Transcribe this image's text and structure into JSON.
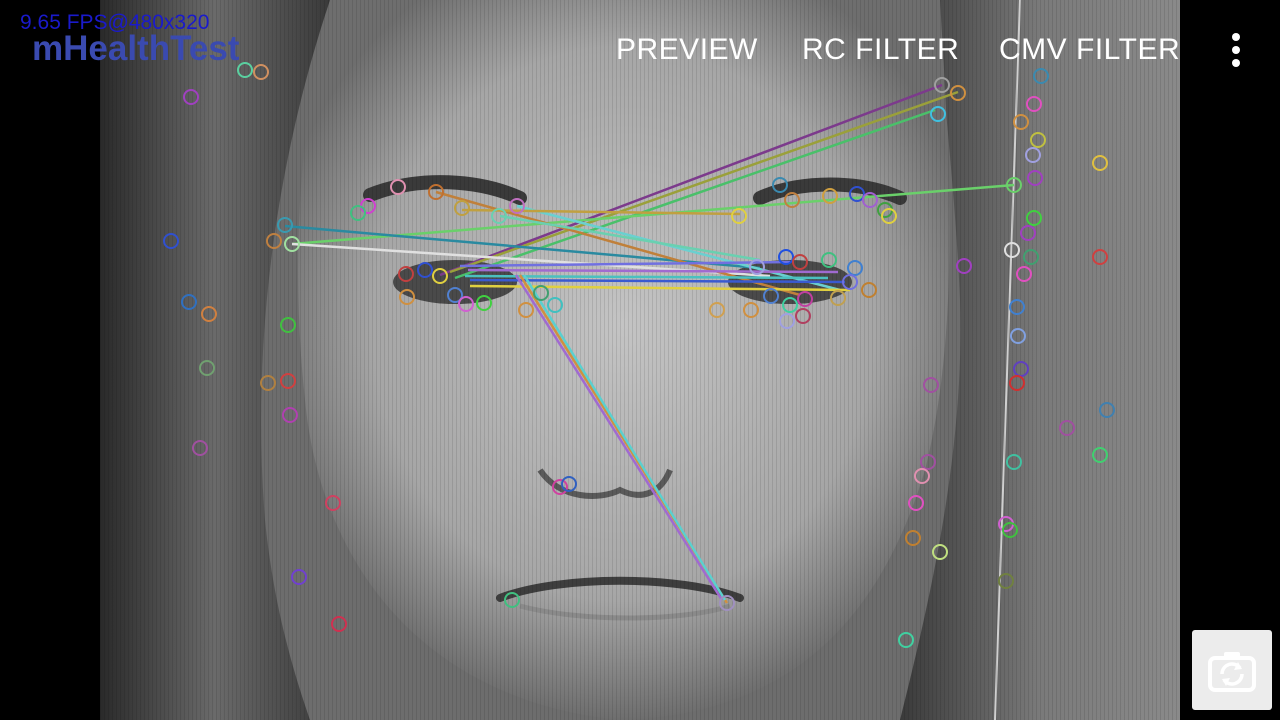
{
  "app": {
    "title": "mHealthTest",
    "fps_text": "9.65 FPS@480x320"
  },
  "action_bar": {
    "preview_label": "PREVIEW",
    "rc_filter_label": "RC FILTER",
    "cmv_filter_label": "CMV FILTER"
  },
  "icons": {
    "overflow": "more-vert-icon",
    "switch_camera": "switch-camera-icon"
  },
  "colors": {
    "fps_text": "#1a1acc",
    "title_text": "#3a4ab0",
    "menu_text": "#ffffff",
    "background": "#000000",
    "switch_button_bg": "#ececec"
  }
}
